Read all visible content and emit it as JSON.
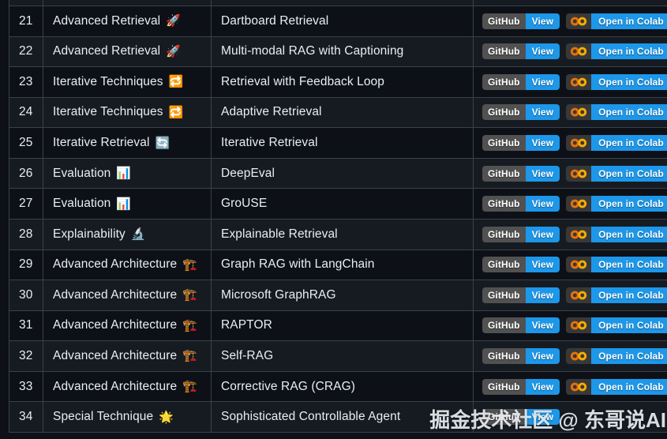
{
  "colors": {
    "page_bg": "#0d1117",
    "row_dark": "#0d1117",
    "row_light": "#161b22",
    "border": "#3a414a",
    "text": "#e8eef4",
    "badge_blue": "#1d97e9",
    "badge_gray": "#515151",
    "colab_dark": "#383838",
    "colab_orange_left": "#E8710A",
    "colab_orange_right": "#F9AB00",
    "watermark": "#e3e8ed"
  },
  "badges": {
    "github_left": "GitHub",
    "github_right": "View",
    "colab_label": "Open in Colab"
  },
  "watermark": {
    "text": "掘金技术社区 @ 东哥说AI"
  },
  "table": {
    "rows": [
      {
        "number": "21",
        "category": "Advanced Retrieval",
        "icon": "🚀",
        "icon_name": "rocket-icon",
        "technique": "Dartboard Retrieval",
        "github": true,
        "colab": true,
        "shade": "dark"
      },
      {
        "number": "22",
        "category": "Advanced Retrieval",
        "icon": "🚀",
        "icon_name": "rocket-icon",
        "technique": "Multi-modal RAG with Captioning",
        "github": true,
        "colab": true,
        "shade": "light"
      },
      {
        "number": "23",
        "category": "Iterative Techniques",
        "icon": "🔁",
        "icon_name": "repeat-icon",
        "technique": "Retrieval with Feedback Loop",
        "github": true,
        "colab": true,
        "shade": "dark"
      },
      {
        "number": "24",
        "category": "Iterative Techniques",
        "icon": "🔁",
        "icon_name": "repeat-icon",
        "technique": "Adaptive Retrieval",
        "github": true,
        "colab": true,
        "shade": "light"
      },
      {
        "number": "25",
        "category": "Iterative Retrieval",
        "icon": "🔄",
        "icon_name": "counterclockwise-arrows-icon",
        "technique": "Iterative Retrieval",
        "github": true,
        "colab": true,
        "shade": "dark"
      },
      {
        "number": "26",
        "category": "Evaluation",
        "icon": "📊",
        "icon_name": "bar-chart-icon",
        "technique": "DeepEval",
        "github": true,
        "colab": true,
        "shade": "light"
      },
      {
        "number": "27",
        "category": "Evaluation",
        "icon": "📊",
        "icon_name": "bar-chart-icon",
        "technique": "GroUSE",
        "github": true,
        "colab": true,
        "shade": "dark"
      },
      {
        "number": "28",
        "category": "Explainability",
        "icon": "🔬",
        "icon_name": "microscope-icon",
        "technique": "Explainable Retrieval",
        "github": true,
        "colab": true,
        "shade": "light"
      },
      {
        "number": "29",
        "category": "Advanced Architecture",
        "icon": "🏗️",
        "icon_name": "building-construction-icon",
        "technique": "Graph RAG with LangChain",
        "github": true,
        "colab": true,
        "shade": "dark"
      },
      {
        "number": "30",
        "category": "Advanced Architecture",
        "icon": "🏗️",
        "icon_name": "building-construction-icon",
        "technique": "Microsoft GraphRAG",
        "github": true,
        "colab": true,
        "shade": "light"
      },
      {
        "number": "31",
        "category": "Advanced Architecture",
        "icon": "🏗️",
        "icon_name": "building-construction-icon",
        "technique": "RAPTOR",
        "github": true,
        "colab": true,
        "shade": "dark"
      },
      {
        "number": "32",
        "category": "Advanced Architecture",
        "icon": "🏗️",
        "icon_name": "building-construction-icon",
        "technique": "Self-RAG",
        "github": true,
        "colab": true,
        "shade": "light"
      },
      {
        "number": "33",
        "category": "Advanced Architecture",
        "icon": "🏗️",
        "icon_name": "building-construction-icon",
        "technique": "Corrective RAG (CRAG)",
        "github": true,
        "colab": true,
        "shade": "dark"
      },
      {
        "number": "34",
        "category": "Special Technique",
        "icon": "🌟",
        "icon_name": "glowing-star-icon",
        "technique": "Sophisticated Controllable Agent",
        "github": true,
        "colab": false,
        "shade": "light"
      }
    ]
  }
}
